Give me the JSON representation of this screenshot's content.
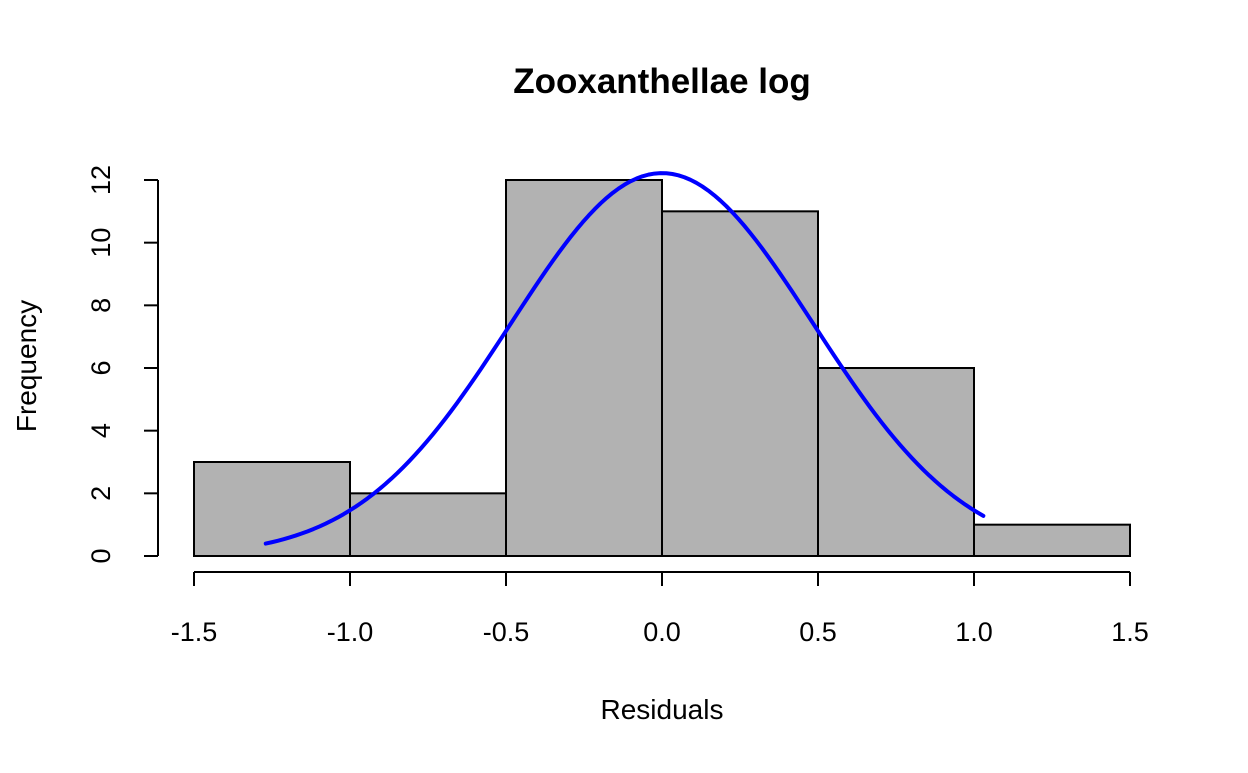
{
  "chart_data": {
    "type": "bar",
    "subtype": "histogram",
    "title": "Zooxanthellae log",
    "xlabel": "Residuals",
    "ylabel": "Frequency",
    "bins": [
      {
        "start": -1.5,
        "end": -1.0,
        "count": 3
      },
      {
        "start": -1.0,
        "end": -0.5,
        "count": 2
      },
      {
        "start": -0.5,
        "end": 0.0,
        "count": 12
      },
      {
        "start": 0.0,
        "end": 0.5,
        "count": 11
      },
      {
        "start": 0.5,
        "end": 1.0,
        "count": 6
      },
      {
        "start": 1.0,
        "end": 1.5,
        "count": 1
      }
    ],
    "xlim": [
      -1.5,
      1.5
    ],
    "ylim": [
      0,
      12
    ],
    "x_ticks": [
      -1.5,
      -1.0,
      -0.5,
      0.0,
      0.5,
      1.0,
      1.5
    ],
    "x_tick_labels": [
      "-1.5",
      "-1.0",
      "-0.5",
      "0.0",
      "0.5",
      "1.0",
      "1.5"
    ],
    "y_ticks": [
      0,
      2,
      4,
      6,
      8,
      10,
      12
    ],
    "y_tick_labels": [
      "0",
      "2",
      "4",
      "6",
      "8",
      "10",
      "12"
    ],
    "normal_curve": {
      "mean": 0.0,
      "sd": 0.485,
      "peak_frequency": 12.22,
      "x_range": [
        -1.27,
        1.03
      ]
    },
    "grid": false,
    "colors": {
      "bar_fill": "#b2b2b2",
      "bar_stroke": "#000000",
      "curve": "#0000ff",
      "axis": "#000000"
    }
  }
}
